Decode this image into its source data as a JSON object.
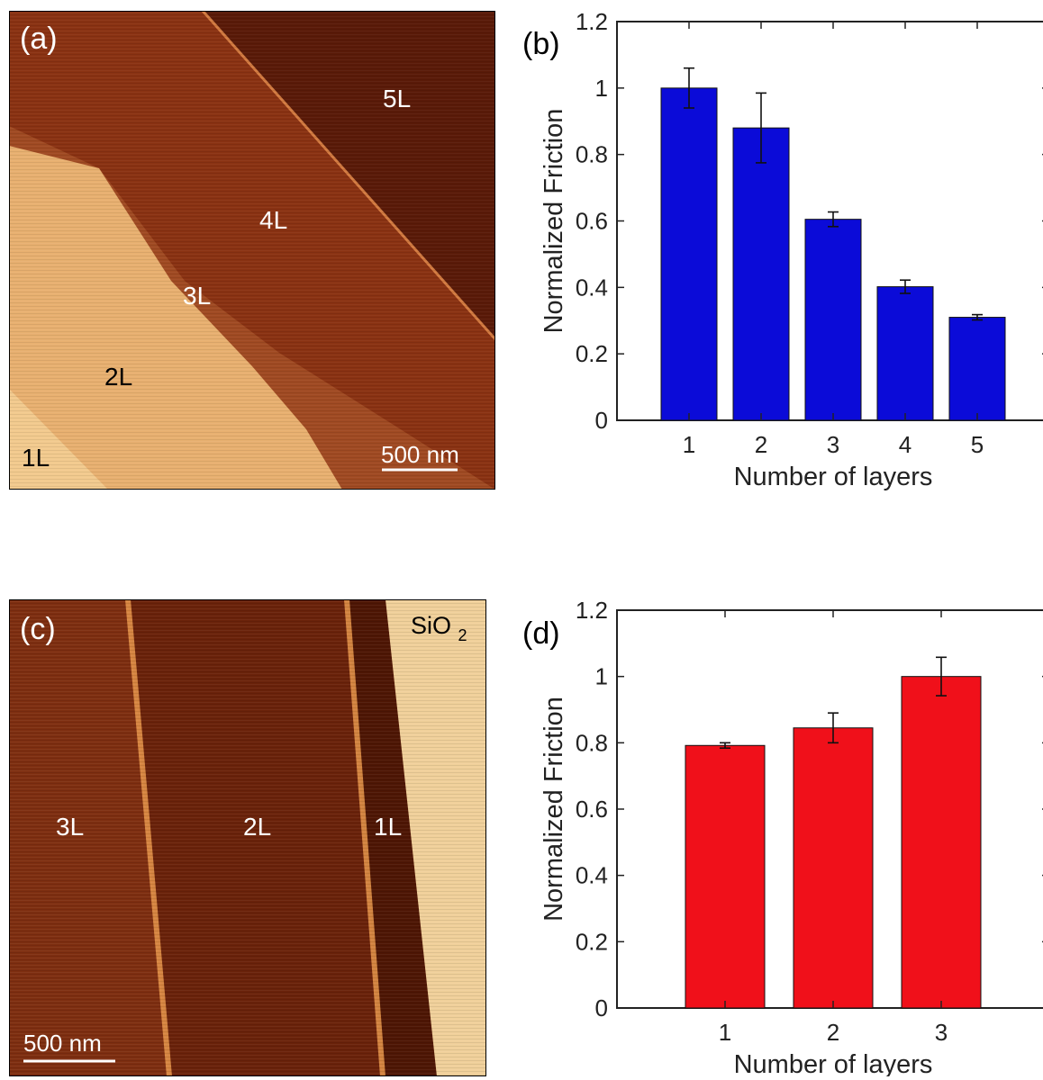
{
  "panels": {
    "a": {
      "panel_label": "(a)",
      "layer_labels": [
        "5L",
        "4L",
        "3L",
        "2L",
        "1L"
      ],
      "scale_bar": "500 nm"
    },
    "c": {
      "panel_label": "(c)",
      "layer_labels": [
        "3L",
        "2L",
        "1L"
      ],
      "substrate_label_main": "SiO",
      "substrate_label_sub": "2",
      "scale_bar": "500 nm"
    },
    "b": {
      "panel_label": "(b)"
    },
    "d": {
      "panel_label": "(d)"
    }
  },
  "colors": {
    "bar_b": "#0b0bd8",
    "bar_d": "#f0101a",
    "axis": "#222222"
  },
  "chart_data": [
    {
      "panel": "b",
      "type": "bar",
      "categories": [
        "1",
        "2",
        "3",
        "4",
        "5"
      ],
      "values": [
        1.0,
        0.88,
        0.605,
        0.402,
        0.31
      ],
      "errors": [
        0.06,
        0.105,
        0.022,
        0.02,
        0.008
      ],
      "xlabel": "Number of layers",
      "ylabel": "Normalized Friction",
      "ylim": [
        0,
        1.2
      ],
      "yticks": [
        "0",
        "0.2",
        "0.4",
        "0.6",
        "0.8",
        "1",
        "1.2"
      ],
      "grid": false
    },
    {
      "panel": "d",
      "type": "bar",
      "categories": [
        "1",
        "2",
        "3"
      ],
      "values": [
        0.792,
        0.845,
        1.0
      ],
      "errors": [
        0.008,
        0.045,
        0.058
      ],
      "xlabel": "Number of layers",
      "ylabel": "Normalized Friction",
      "ylim": [
        0,
        1.2
      ],
      "yticks": [
        "0",
        "0.2",
        "0.4",
        "0.6",
        "0.8",
        "1",
        "1.2"
      ],
      "grid": false
    }
  ]
}
